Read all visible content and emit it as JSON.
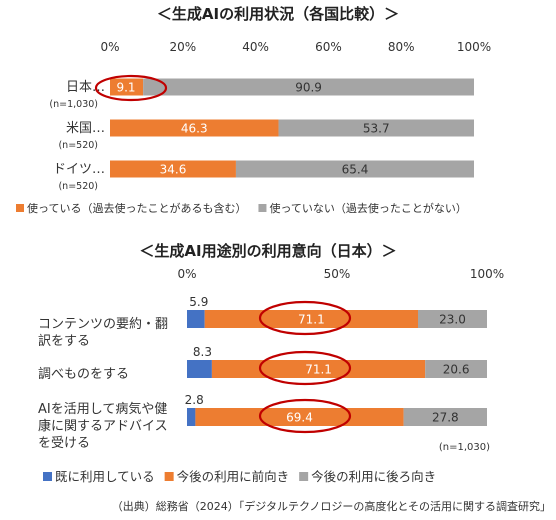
{
  "colors": {
    "blue": "#4472c4",
    "orange": "#ed7d31",
    "gray": "#a5a5a5",
    "highlight_ring": "#c00000",
    "text": "#333333"
  },
  "source_note": "（出典）総務省（2024）「デジタルテクノロジーの高度化とその活用に関する調査研究」",
  "chart_data": [
    {
      "type": "bar",
      "orientation": "horizontal-stacked-100",
      "title": "＜生成AIの利用状況（各国比較）＞",
      "xlim": [
        0,
        100
      ],
      "ticks": [
        "0%",
        "20%",
        "40%",
        "60%",
        "80%",
        "100%"
      ],
      "categories": [
        "日本…",
        "米国…",
        "ドイツ…"
      ],
      "sample_sizes": [
        "(n=1,030)",
        "(n=520)",
        "(n=520)"
      ],
      "series": [
        {
          "name": "使っている（過去使ったことがあるも含む）",
          "color": "#ed7d31",
          "values": [
            9.1,
            46.3,
            34.6
          ]
        },
        {
          "name": "使っていない（過去使ったことがない）",
          "color": "#a5a5a5",
          "values": [
            90.9,
            53.7,
            65.4
          ]
        }
      ],
      "highlighted": [
        {
          "category": 0,
          "series": 0
        }
      ],
      "legend": "bottom"
    },
    {
      "type": "bar",
      "orientation": "horizontal-stacked-100",
      "title": "＜生成AI用途別の利用意向（日本）＞",
      "xlim": [
        0,
        100
      ],
      "ticks": [
        "0%",
        "50%",
        "100%"
      ],
      "categories": [
        [
          "コンテンツの要約・翻",
          "訳をする"
        ],
        [
          "調べものをする"
        ],
        [
          "AIを活用して病気や健",
          "康に関するアドバイス",
          "を受ける"
        ]
      ],
      "sample_note": "(n=1,030)",
      "series": [
        {
          "name": "既に利用している",
          "color": "#4472c4",
          "values": [
            5.9,
            8.3,
            2.8
          ]
        },
        {
          "name": "今後の利用に前向き",
          "color": "#ed7d31",
          "values": [
            71.1,
            71.1,
            69.4
          ]
        },
        {
          "name": "今後の利用に後ろ向き",
          "color": "#a5a5a5",
          "values": [
            23.0,
            20.6,
            27.8
          ]
        }
      ],
      "highlighted": [
        {
          "category": 0,
          "series": 1
        },
        {
          "category": 1,
          "series": 1
        },
        {
          "category": 2,
          "series": 1
        }
      ],
      "legend": "bottom"
    }
  ]
}
